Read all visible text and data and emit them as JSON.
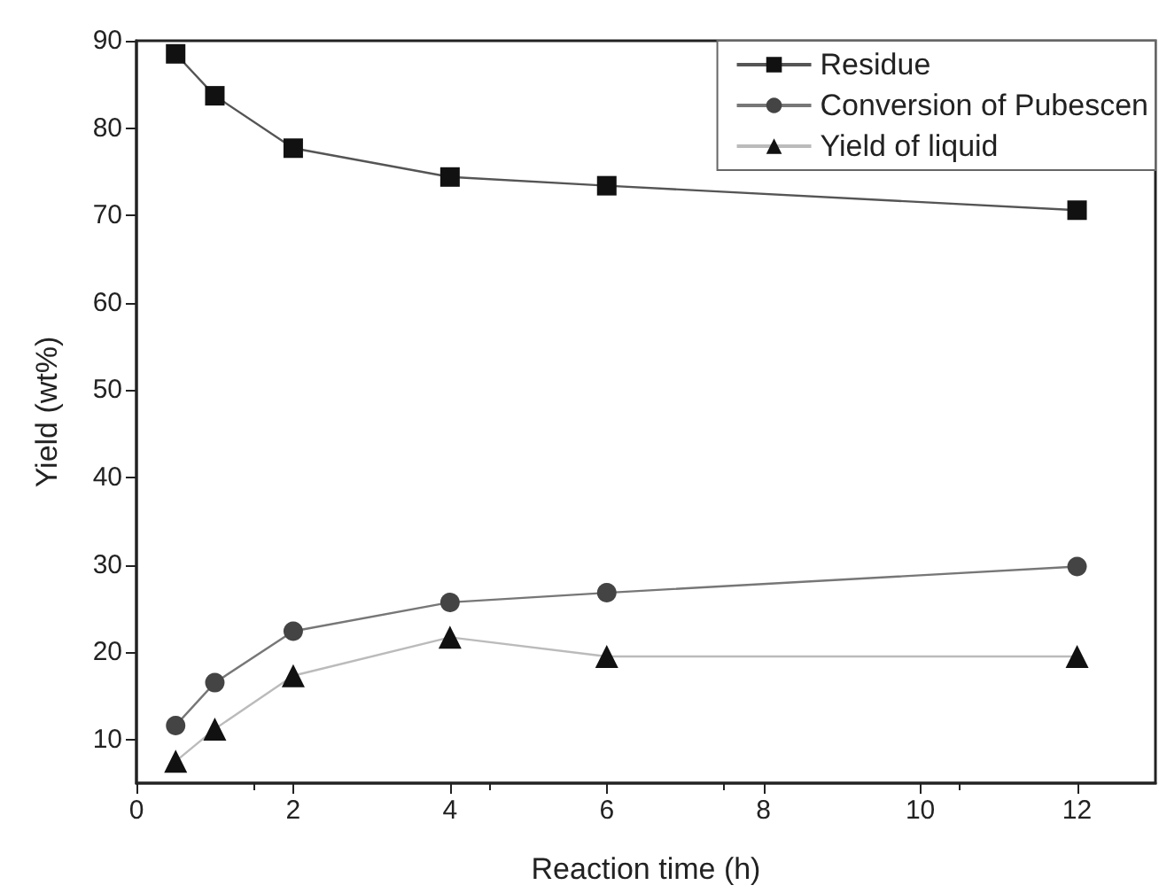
{
  "chart_data": {
    "type": "line",
    "xlabel": "Reaction time (h)",
    "ylabel": "Yield (wt%)",
    "x": [
      0.5,
      1,
      2,
      4,
      6,
      12
    ],
    "series": [
      {
        "name": "Residue",
        "color": "#111111",
        "marker": "square",
        "values": [
          88.5,
          83.7,
          77.7,
          74.4,
          73.4,
          70.6
        ]
      },
      {
        "name": "Conversion of Pubescen",
        "color": "#444444",
        "marker": "circle",
        "values": [
          11.6,
          16.5,
          22.4,
          25.7,
          26.8,
          29.8
        ]
      },
      {
        "name": "Yield of liquid",
        "color": "#111111",
        "marker": "triangle",
        "values": [
          7.5,
          11.2,
          17.3,
          21.7,
          19.5,
          19.5
        ]
      }
    ],
    "xlim": [
      0,
      13
    ],
    "xticks": [
      0,
      2,
      4,
      6,
      8,
      10,
      12
    ],
    "ylim": [
      5,
      90
    ],
    "yticks": [
      10,
      20,
      30,
      40,
      50,
      60,
      70,
      80,
      90
    ],
    "grid": false,
    "legend": "top right",
    "line_style": "solid"
  }
}
